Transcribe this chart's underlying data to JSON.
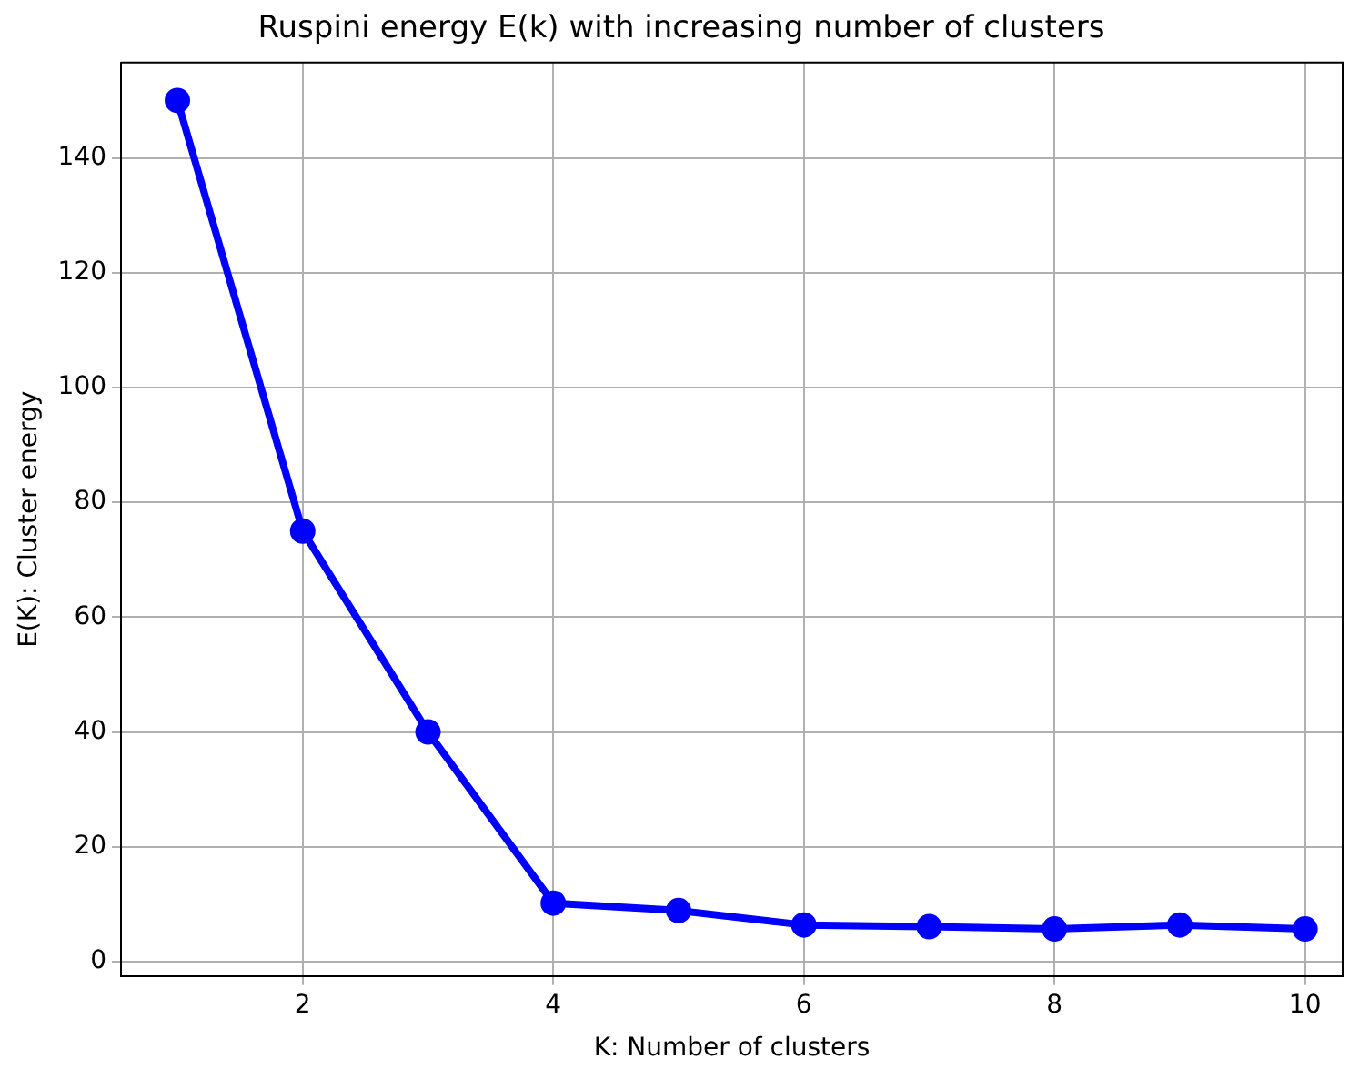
{
  "chart_data": {
    "type": "line",
    "title": "Ruspini energy E(k) with increasing number of clusters",
    "xlabel": "K: Number of clusters",
    "ylabel": "E(K): Cluster energy",
    "x": [
      1,
      2,
      3,
      4,
      5,
      6,
      7,
      8,
      9,
      10
    ],
    "series": [
      {
        "color": "#0000ff",
        "values": [
          150,
          75,
          40,
          10.2,
          8.9,
          6.4,
          6.1,
          5.7,
          6.4,
          5.7
        ]
      }
    ],
    "xlim": [
      0.55,
      10.3
    ],
    "xticks": [
      2,
      4,
      6,
      8,
      10
    ],
    "ylim": [
      -2.5,
      156.6
    ],
    "yticks": [
      0,
      20,
      40,
      60,
      80,
      100,
      120,
      140
    ],
    "grid": true,
    "legend": false,
    "marker": "circle",
    "line_style": "solid"
  }
}
